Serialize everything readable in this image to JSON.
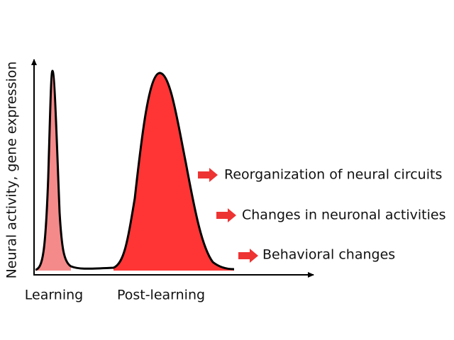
{
  "axis_label": "Neural activity, gene expression",
  "phases": [
    "Learning",
    "Post-learning"
  ],
  "outcomes": [
    "Reorganization of neural circuits",
    "Changes in neuronal activities",
    "Behavioral changes"
  ]
}
